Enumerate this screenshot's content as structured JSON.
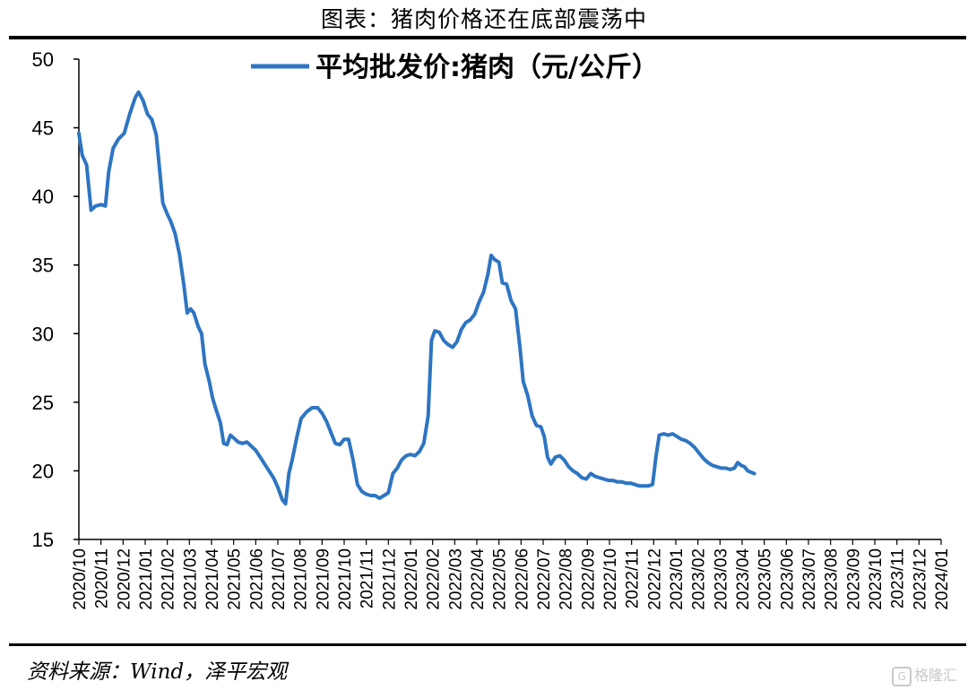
{
  "header": {
    "title": "图表：猪肉价格还在底部震荡中"
  },
  "footer": {
    "source": "资料来源：Wind，泽平宏观",
    "watermark": "格隆汇"
  },
  "chart_data": {
    "type": "line",
    "title": "",
    "xlabel": "",
    "ylabel": "",
    "ylim": [
      15,
      50
    ],
    "yticks": [
      15,
      20,
      25,
      30,
      35,
      40,
      45,
      50
    ],
    "legend_position": "top-center",
    "categories": [
      "2020/10",
      "2020/11",
      "2020/12",
      "2021/01",
      "2021/02",
      "2021/03",
      "2021/04",
      "2021/05",
      "2021/06",
      "2021/07",
      "2021/08",
      "2021/09",
      "2021/10",
      "2021/11",
      "2021/12",
      "2022/01",
      "2022/02",
      "2022/03",
      "2022/04",
      "2022/05",
      "2022/06",
      "2022/07",
      "2022/08",
      "2022/09",
      "2022/10",
      "2022/11",
      "2022/12",
      "2023/01",
      "2023/02",
      "2023/03",
      "2023/04",
      "2023/05",
      "2023/06",
      "2023/07",
      "2023/08",
      "2023/09",
      "2023/10",
      "2023/11",
      "2023/12",
      "2024/01"
    ],
    "series": [
      {
        "name": "平均批发价:猪肉（元/公斤）",
        "color": "#2e75c2",
        "points": [
          [
            0.0,
            44.6
          ],
          [
            0.15,
            43.0
          ],
          [
            0.35,
            42.3
          ],
          [
            0.55,
            39.0
          ],
          [
            0.75,
            39.3
          ],
          [
            1.0,
            39.4
          ],
          [
            1.2,
            39.3
          ],
          [
            1.35,
            41.8
          ],
          [
            1.55,
            43.5
          ],
          [
            1.8,
            44.2
          ],
          [
            2.05,
            44.6
          ],
          [
            2.3,
            46.0
          ],
          [
            2.55,
            47.2
          ],
          [
            2.7,
            47.6
          ],
          [
            2.9,
            47.0
          ],
          [
            3.1,
            46.0
          ],
          [
            3.3,
            45.6
          ],
          [
            3.5,
            44.5
          ],
          [
            3.65,
            42.0
          ],
          [
            3.8,
            39.5
          ],
          [
            4.0,
            38.7
          ],
          [
            4.15,
            38.2
          ],
          [
            4.35,
            37.3
          ],
          [
            4.55,
            35.8
          ],
          [
            4.75,
            33.5
          ],
          [
            4.9,
            31.5
          ],
          [
            5.05,
            31.8
          ],
          [
            5.2,
            31.5
          ],
          [
            5.4,
            30.5
          ],
          [
            5.55,
            30.0
          ],
          [
            5.7,
            27.8
          ],
          [
            5.9,
            26.5
          ],
          [
            6.05,
            25.3
          ],
          [
            6.2,
            24.5
          ],
          [
            6.4,
            23.5
          ],
          [
            6.55,
            22.0
          ],
          [
            6.7,
            21.9
          ],
          [
            6.85,
            22.6
          ],
          [
            7.0,
            22.4
          ],
          [
            7.2,
            22.1
          ],
          [
            7.4,
            22.0
          ],
          [
            7.6,
            22.1
          ],
          [
            7.8,
            21.8
          ],
          [
            8.0,
            21.5
          ],
          [
            8.2,
            21.0
          ],
          [
            8.4,
            20.5
          ],
          [
            8.6,
            20.0
          ],
          [
            8.8,
            19.5
          ],
          [
            9.0,
            18.8
          ],
          [
            9.2,
            17.9
          ],
          [
            9.35,
            17.6
          ],
          [
            9.5,
            19.8
          ],
          [
            9.65,
            20.8
          ],
          [
            9.85,
            22.4
          ],
          [
            10.05,
            23.8
          ],
          [
            10.3,
            24.3
          ],
          [
            10.55,
            24.6
          ],
          [
            10.8,
            24.6
          ],
          [
            11.0,
            24.2
          ],
          [
            11.2,
            23.6
          ],
          [
            11.4,
            22.8
          ],
          [
            11.6,
            22.0
          ],
          [
            11.8,
            21.9
          ],
          [
            12.0,
            22.3
          ],
          [
            12.2,
            22.3
          ],
          [
            12.4,
            20.8
          ],
          [
            12.6,
            19.0
          ],
          [
            12.8,
            18.5
          ],
          [
            13.0,
            18.3
          ],
          [
            13.2,
            18.2
          ],
          [
            13.4,
            18.2
          ],
          [
            13.6,
            18.0
          ],
          [
            13.8,
            18.2
          ],
          [
            14.0,
            18.4
          ],
          [
            14.2,
            19.8
          ],
          [
            14.4,
            20.2
          ],
          [
            14.6,
            20.8
          ],
          [
            14.8,
            21.1
          ],
          [
            15.0,
            21.2
          ],
          [
            15.2,
            21.1
          ],
          [
            15.4,
            21.4
          ],
          [
            15.6,
            22.0
          ],
          [
            15.8,
            24.0
          ],
          [
            15.95,
            29.5
          ],
          [
            16.1,
            30.2
          ],
          [
            16.3,
            30.1
          ],
          [
            16.5,
            29.5
          ],
          [
            16.7,
            29.2
          ],
          [
            16.9,
            29.0
          ],
          [
            17.1,
            29.4
          ],
          [
            17.3,
            30.3
          ],
          [
            17.5,
            30.8
          ],
          [
            17.7,
            31.0
          ],
          [
            17.9,
            31.4
          ],
          [
            18.1,
            32.3
          ],
          [
            18.3,
            33.0
          ],
          [
            18.5,
            34.3
          ],
          [
            18.65,
            35.7
          ],
          [
            18.8,
            35.4
          ],
          [
            19.0,
            35.2
          ],
          [
            19.15,
            33.7
          ],
          [
            19.35,
            33.6
          ],
          [
            19.55,
            32.4
          ],
          [
            19.75,
            31.8
          ],
          [
            19.95,
            29.0
          ],
          [
            20.1,
            26.5
          ],
          [
            20.3,
            25.5
          ],
          [
            20.5,
            24.0
          ],
          [
            20.7,
            23.3
          ],
          [
            20.9,
            23.2
          ],
          [
            21.05,
            22.5
          ],
          [
            21.2,
            21.0
          ],
          [
            21.35,
            20.5
          ],
          [
            21.55,
            21.0
          ],
          [
            21.75,
            21.1
          ],
          [
            21.95,
            20.8
          ],
          [
            22.15,
            20.3
          ],
          [
            22.35,
            20.0
          ],
          [
            22.55,
            19.8
          ],
          [
            22.75,
            19.5
          ],
          [
            22.95,
            19.4
          ],
          [
            23.15,
            19.8
          ],
          [
            23.35,
            19.6
          ],
          [
            23.55,
            19.5
          ],
          [
            23.75,
            19.4
          ],
          [
            23.95,
            19.3
          ],
          [
            24.15,
            19.3
          ],
          [
            24.35,
            19.2
          ],
          [
            24.55,
            19.2
          ],
          [
            24.75,
            19.1
          ],
          [
            24.95,
            19.1
          ],
          [
            25.15,
            19.0
          ],
          [
            25.35,
            18.9
          ],
          [
            25.55,
            18.9
          ],
          [
            25.75,
            18.9
          ],
          [
            25.95,
            19.0
          ],
          [
            26.1,
            21.0
          ],
          [
            26.25,
            22.6
          ],
          [
            26.45,
            22.7
          ],
          [
            26.65,
            22.6
          ],
          [
            26.85,
            22.7
          ],
          [
            27.05,
            22.5
          ],
          [
            27.25,
            22.3
          ],
          [
            27.45,
            22.2
          ],
          [
            27.65,
            22.0
          ],
          [
            27.85,
            21.7
          ],
          [
            28.05,
            21.3
          ],
          [
            28.25,
            20.9
          ],
          [
            28.45,
            20.6
          ],
          [
            28.65,
            20.4
          ],
          [
            28.85,
            20.3
          ],
          [
            29.05,
            20.2
          ],
          [
            29.25,
            20.2
          ],
          [
            29.45,
            20.1
          ],
          [
            29.65,
            20.2
          ],
          [
            29.8,
            20.6
          ],
          [
            29.95,
            20.4
          ],
          [
            30.1,
            20.3
          ],
          [
            30.25,
            20.0
          ],
          [
            30.4,
            19.9
          ],
          [
            30.55,
            19.8
          ]
        ]
      }
    ]
  }
}
